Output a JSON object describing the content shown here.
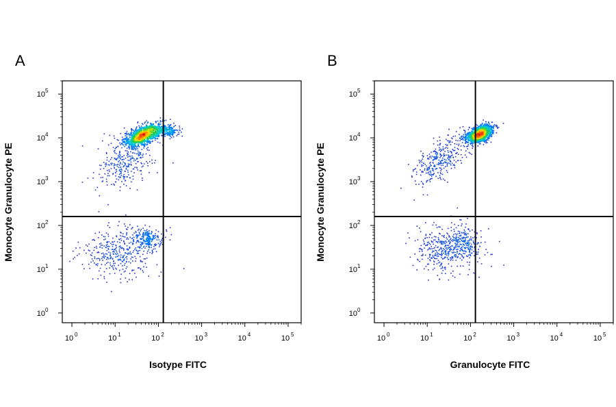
{
  "chart_data": [
    {
      "type": "scatter",
      "panel_label": "A",
      "xlabel": "Isotype FITC",
      "ylabel": "Monocyte Granulocyte PE",
      "x_scale": "log",
      "y_scale": "log",
      "xlim": [
        0.6,
        200000
      ],
      "ylim": [
        0.6,
        200000
      ],
      "tick_values": [
        1,
        10,
        100,
        1000,
        10000,
        100000
      ],
      "tick_labels": [
        {
          "base": "10",
          "exp": "0"
        },
        {
          "base": "10",
          "exp": "1"
        },
        {
          "base": "10",
          "exp": "2"
        },
        {
          "base": "10",
          "exp": "3"
        },
        {
          "base": "10",
          "exp": "4"
        },
        {
          "base": "10",
          "exp": "5"
        }
      ],
      "quadrant_gate": {
        "x": 130,
        "y": 160
      },
      "grid": false,
      "populations": [
        {
          "center": [
            45,
            12000
          ],
          "spread": [
            0.23,
            0.11
          ],
          "count": 650,
          "tilt": 0.35
        },
        {
          "center": [
            150,
            14000
          ],
          "spread": [
            0.2,
            0.08
          ],
          "count": 150,
          "tilt": 0.0
        },
        {
          "center": [
            18,
            3000
          ],
          "spread": [
            0.32,
            0.28
          ],
          "count": 320,
          "tilt": 0.4
        },
        {
          "center": [
            12,
            25
          ],
          "spread": [
            0.42,
            0.28
          ],
          "count": 360,
          "tilt": 0.0
        },
        {
          "center": [
            60,
            45
          ],
          "spread": [
            0.2,
            0.15
          ],
          "count": 180,
          "tilt": 0.0
        }
      ]
    },
    {
      "type": "scatter",
      "panel_label": "B",
      "xlabel": "Granulocyte FITC",
      "ylabel": "Monocyte Granulocyte PE",
      "x_scale": "log",
      "y_scale": "log",
      "xlim": [
        0.6,
        200000
      ],
      "ylim": [
        0.6,
        200000
      ],
      "tick_values": [
        1,
        10,
        100,
        1000,
        10000,
        100000
      ],
      "tick_labels": [
        {
          "base": "10",
          "exp": "0"
        },
        {
          "base": "10",
          "exp": "1"
        },
        {
          "base": "10",
          "exp": "2"
        },
        {
          "base": "10",
          "exp": "3"
        },
        {
          "base": "10",
          "exp": "4"
        },
        {
          "base": "10",
          "exp": "5"
        }
      ],
      "quadrant_gate": {
        "x": 130,
        "y": 160
      },
      "grid": false,
      "populations": [
        {
          "center": [
            160,
            12000
          ],
          "spread": [
            0.17,
            0.1
          ],
          "count": 700,
          "tilt": 0.3
        },
        {
          "center": [
            20,
            3200
          ],
          "spread": [
            0.35,
            0.22
          ],
          "count": 330,
          "tilt": 0.6
        },
        {
          "center": [
            25,
            30
          ],
          "spread": [
            0.38,
            0.28
          ],
          "count": 380,
          "tilt": 0.0
        },
        {
          "center": [
            80,
            40
          ],
          "spread": [
            0.22,
            0.2
          ],
          "count": 170,
          "tilt": 0.0
        }
      ]
    }
  ]
}
